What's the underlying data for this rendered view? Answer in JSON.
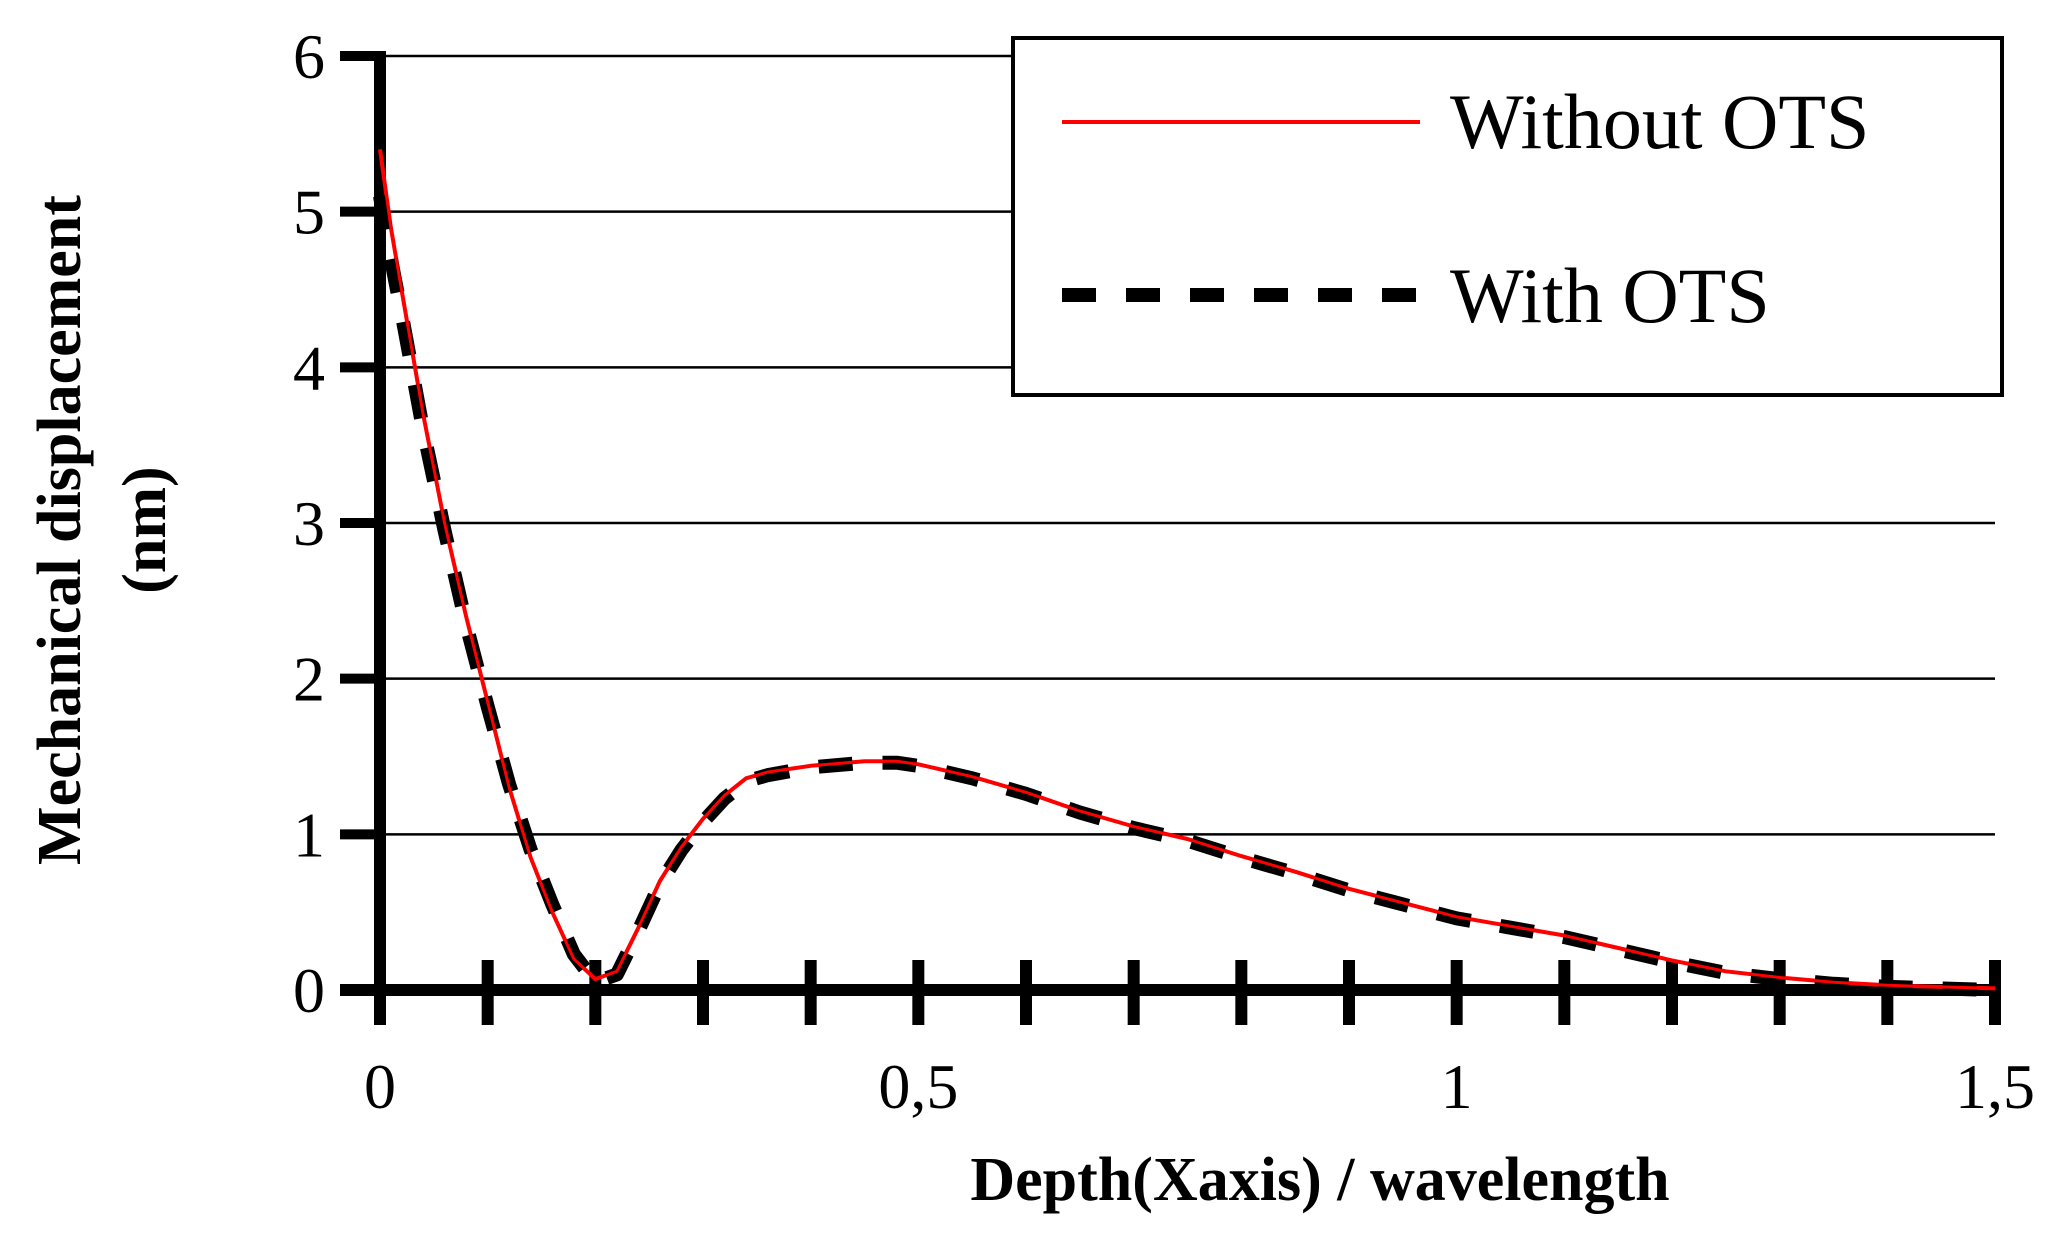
{
  "chart_data": {
    "type": "line",
    "xlabel": "Depth(Xaxis) / wavelength",
    "ylabel_line1": "Mechanical displacement",
    "ylabel_line2": "(nm)",
    "xlim": [
      0,
      1.5
    ],
    "ylim": [
      0,
      6
    ],
    "x_ticks": [
      0,
      0.5,
      1,
      1.5
    ],
    "x_tick_labels": [
      "0",
      "0,5",
      "1",
      "1,5"
    ],
    "x_minor_ticks": [
      0,
      0.1,
      0.2,
      0.3,
      0.4,
      0.5,
      0.6,
      0.7,
      0.8,
      0.9,
      1.0,
      1.1,
      1.2,
      1.3,
      1.4,
      1.5
    ],
    "y_ticks": [
      0,
      1,
      2,
      3,
      4,
      5,
      6
    ],
    "y_tick_labels": [
      "0",
      "1",
      "2",
      "3",
      "4",
      "5",
      "6"
    ],
    "grid": "horizontal",
    "legend_position": "top-right",
    "series": [
      {
        "name": "Without OTS",
        "color": "#ff0000",
        "style": "solid",
        "x": [
          0,
          0.01,
          0.02,
          0.04,
          0.06,
          0.08,
          0.1,
          0.12,
          0.14,
          0.16,
          0.18,
          0.2,
          0.22,
          0.24,
          0.26,
          0.28,
          0.3,
          0.32,
          0.34,
          0.36,
          0.4,
          0.45,
          0.48,
          0.5,
          0.55,
          0.6,
          0.65,
          0.7,
          0.75,
          0.8,
          0.85,
          0.9,
          0.95,
          1.0,
          1.05,
          1.1,
          1.15,
          1.2,
          1.25,
          1.3,
          1.35,
          1.4,
          1.45,
          1.5
        ],
        "y": [
          5.4,
          4.9,
          4.5,
          3.7,
          3.0,
          2.4,
          1.85,
          1.3,
          0.85,
          0.5,
          0.2,
          0.07,
          0.12,
          0.4,
          0.7,
          0.92,
          1.1,
          1.25,
          1.36,
          1.4,
          1.44,
          1.47,
          1.47,
          1.45,
          1.37,
          1.27,
          1.15,
          1.05,
          0.97,
          0.86,
          0.76,
          0.65,
          0.56,
          0.47,
          0.41,
          0.35,
          0.27,
          0.19,
          0.12,
          0.08,
          0.05,
          0.03,
          0.02,
          0.01
        ]
      },
      {
        "name": "With OTS",
        "color": "#000000",
        "style": "dashed",
        "x": [
          0,
          0.01,
          0.02,
          0.04,
          0.06,
          0.08,
          0.1,
          0.12,
          0.14,
          0.16,
          0.18,
          0.2,
          0.22,
          0.24,
          0.26,
          0.28,
          0.3,
          0.32,
          0.34,
          0.36,
          0.4,
          0.45,
          0.48,
          0.5,
          0.55,
          0.6,
          0.65,
          0.7,
          0.75,
          0.8,
          0.85,
          0.9,
          0.95,
          1.0,
          1.05,
          1.1,
          1.15,
          1.2,
          1.25,
          1.3,
          1.35,
          1.4,
          1.45,
          1.5
        ],
        "y": [
          5.1,
          4.7,
          4.35,
          3.6,
          2.95,
          2.35,
          1.82,
          1.32,
          0.9,
          0.55,
          0.23,
          0.05,
          0.1,
          0.38,
          0.68,
          0.9,
          1.08,
          1.23,
          1.34,
          1.38,
          1.43,
          1.46,
          1.46,
          1.44,
          1.36,
          1.26,
          1.14,
          1.04,
          0.96,
          0.85,
          0.75,
          0.64,
          0.55,
          0.46,
          0.4,
          0.34,
          0.26,
          0.18,
          0.11,
          0.07,
          0.04,
          0.02,
          0.01,
          0.0
        ]
      }
    ]
  }
}
